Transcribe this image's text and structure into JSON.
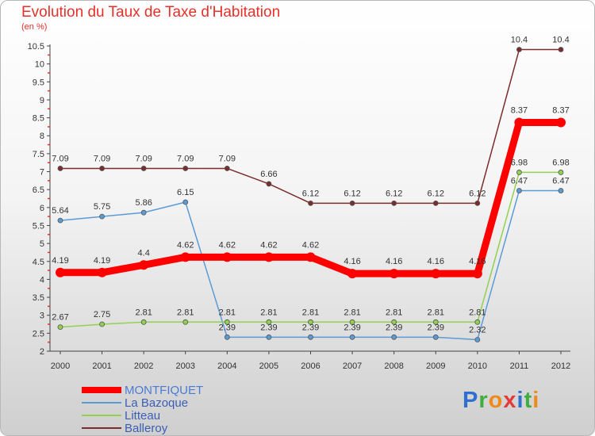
{
  "title": "Evolution du Taux de Taxe d'Habitation",
  "subtitle": "(en %)",
  "logo": {
    "letters": [
      {
        "ch": "P",
        "color": "#2e6fd0"
      },
      {
        "ch": "r",
        "color": "#3fae3f"
      },
      {
        "ch": "o",
        "color": "#f08a1c"
      },
      {
        "ch": "x",
        "color": "#e53a3a"
      },
      {
        "ch": "i",
        "color": "#2e6fd0"
      },
      {
        "ch": "t",
        "color": "#3fae3f"
      },
      {
        "ch": "i",
        "color": "#f08a1c"
      }
    ]
  },
  "chart_data": {
    "type": "line",
    "title": "Evolution du Taux de Taxe d'Habitation",
    "ylabel": "(en %)",
    "x": [
      "2000",
      "2001",
      "2002",
      "2003",
      "2004",
      "2005",
      "2006",
      "2007",
      "2008",
      "2009",
      "2010",
      "2011",
      "2012"
    ],
    "ylim": [
      2,
      10.5
    ],
    "yticks": [
      "2",
      "2.5",
      "3",
      "3.5",
      "4",
      "4.5",
      "5",
      "5.5",
      "6",
      "6.5",
      "7",
      "7.5",
      "8",
      "8.5",
      "9",
      "9.5",
      "10",
      "10.5"
    ],
    "grid": false,
    "legend": "bottom-left",
    "series": [
      {
        "name": "MONTFIQUET",
        "color": "#ff0000",
        "width": 9,
        "values": [
          4.19,
          4.19,
          4.4,
          4.62,
          4.62,
          4.62,
          4.62,
          4.16,
          4.16,
          4.16,
          4.16,
          8.37,
          8.37
        ],
        "labels": [
          "4.19",
          "4.19",
          "4.4",
          "4.62",
          "4.62",
          "4.62",
          "4.62",
          "4.16",
          "4.16",
          "4.16",
          "4.16",
          "8.37",
          "8.37"
        ]
      },
      {
        "name": "La Bazoque",
        "color": "#5b9bd5",
        "width": 1.5,
        "values": [
          5.64,
          5.75,
          5.86,
          6.15,
          2.39,
          2.39,
          2.39,
          2.39,
          2.39,
          2.39,
          2.32,
          6.47,
          6.47
        ],
        "labels": [
          "5.64",
          "5.75",
          "5.86",
          "6.15",
          "2.39",
          "2.39",
          "2.39",
          "2.39",
          "2.39",
          "2.39",
          "2.32",
          "6.47",
          "6.47"
        ]
      },
      {
        "name": "Litteau",
        "color": "#92d050",
        "width": 1.5,
        "values": [
          2.67,
          2.75,
          2.81,
          2.81,
          2.81,
          2.81,
          2.81,
          2.81,
          2.81,
          2.81,
          2.81,
          6.98,
          6.98
        ],
        "labels": [
          "2.67",
          "2.75",
          "2.81",
          "2.81",
          "2.81",
          "2.81",
          "2.81",
          "2.81",
          "2.81",
          "2.81",
          "2.81",
          "6.98",
          "6.98"
        ]
      },
      {
        "name": "Balleroy",
        "color": "#7b2c2c",
        "width": 1.5,
        "values": [
          7.09,
          7.09,
          7.09,
          7.09,
          7.09,
          6.66,
          6.12,
          6.12,
          6.12,
          6.12,
          6.12,
          10.4,
          10.4
        ],
        "labels": [
          "7.09",
          "7.09",
          "7.09",
          "7.09",
          "7.09",
          "6.66",
          "6.12",
          "6.12",
          "6.12",
          "6.12",
          "6.12",
          "10.4",
          "10.4"
        ]
      }
    ]
  }
}
